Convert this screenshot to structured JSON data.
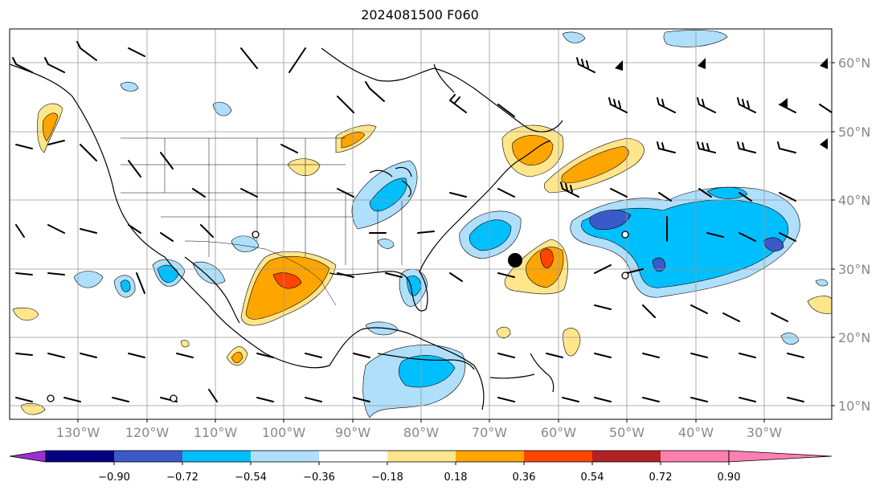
{
  "title": "2024081500 F060",
  "lon_labels": [
    "130°W",
    "120°W",
    "110°W",
    "100°W",
    "90°W",
    "80°W",
    "70°W",
    "60°W",
    "50°W",
    "40°W",
    "30°W"
  ],
  "lat_labels": [
    "60°N",
    "50°N",
    "40°N",
    "30°N",
    "20°N",
    "10°N"
  ],
  "colorbar": {
    "colors": [
      "#9b30d0",
      "#000080",
      "#3a5bc7",
      "#00bfff",
      "#afdffa",
      "#ffffff",
      "#ffe68c",
      "#ffa500",
      "#ff4500",
      "#b22222",
      "#ff80b0"
    ],
    "labels": [
      "−0.90",
      "−0.72",
      "−0.54",
      "−0.36",
      "−0.18",
      "0.18",
      "0.36",
      "0.54",
      "0.72",
      "0.90"
    ]
  }
}
